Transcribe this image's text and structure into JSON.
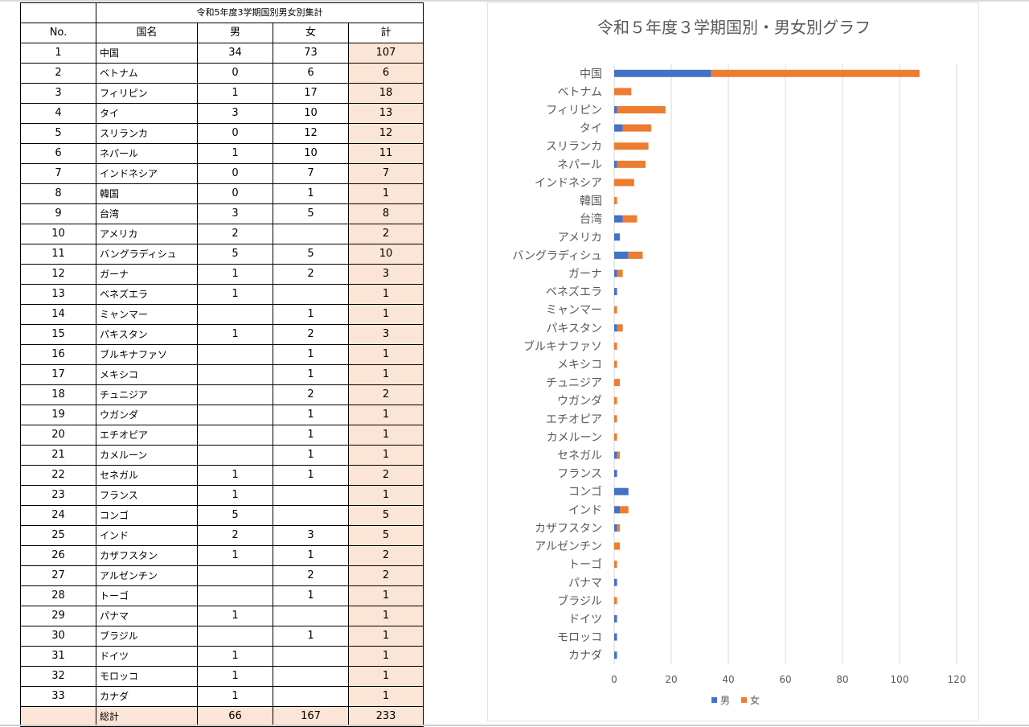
{
  "table": {
    "title": "令和5年度3学期国別男女別集計",
    "headers": [
      "No.",
      "国名",
      "男",
      "女",
      "計"
    ],
    "rows": [
      {
        "no": "1",
        "name": "中国",
        "male": "34",
        "female": "73",
        "total": "107"
      },
      {
        "no": "2",
        "name": "ベトナム",
        "male": "0",
        "female": "6",
        "total": "6"
      },
      {
        "no": "3",
        "name": "フィリピン",
        "male": "1",
        "female": "17",
        "total": "18"
      },
      {
        "no": "4",
        "name": "タイ",
        "male": "3",
        "female": "10",
        "total": "13"
      },
      {
        "no": "5",
        "name": "スリランカ",
        "male": "0",
        "female": "12",
        "total": "12"
      },
      {
        "no": "6",
        "name": "ネパール",
        "male": "1",
        "female": "10",
        "total": "11"
      },
      {
        "no": "7",
        "name": "インドネシア",
        "male": "0",
        "female": "7",
        "total": "7"
      },
      {
        "no": "8",
        "name": "韓国",
        "male": "0",
        "female": "1",
        "total": "1"
      },
      {
        "no": "9",
        "name": "台湾",
        "male": "3",
        "female": "5",
        "total": "8"
      },
      {
        "no": "10",
        "name": "アメリカ",
        "male": "2",
        "female": "",
        "total": "2"
      },
      {
        "no": "11",
        "name": "バングラディシュ",
        "male": "5",
        "female": "5",
        "total": "10"
      },
      {
        "no": "12",
        "name": "ガーナ",
        "male": "1",
        "female": "2",
        "total": "3"
      },
      {
        "no": "13",
        "name": "ベネズエラ",
        "male": "1",
        "female": "",
        "total": "1"
      },
      {
        "no": "14",
        "name": "ミャンマー",
        "male": "",
        "female": "1",
        "total": "1"
      },
      {
        "no": "15",
        "name": "パキスタン",
        "male": "1",
        "female": "2",
        "total": "3"
      },
      {
        "no": "16",
        "name": "ブルキナファソ",
        "male": "",
        "female": "1",
        "total": "1"
      },
      {
        "no": "17",
        "name": "メキシコ",
        "male": "",
        "female": "1",
        "total": "1"
      },
      {
        "no": "18",
        "name": "チュニジア",
        "male": "",
        "female": "2",
        "total": "2"
      },
      {
        "no": "19",
        "name": "ウガンダ",
        "male": "",
        "female": "1",
        "total": "1"
      },
      {
        "no": "20",
        "name": "エチオピア",
        "male": "",
        "female": "1",
        "total": "1"
      },
      {
        "no": "21",
        "name": "カメルーン",
        "male": "",
        "female": "1",
        "total": "1"
      },
      {
        "no": "22",
        "name": "セネガル",
        "male": "1",
        "female": "1",
        "total": "2"
      },
      {
        "no": "23",
        "name": "フランス",
        "male": "1",
        "female": "",
        "total": "1"
      },
      {
        "no": "24",
        "name": "コンゴ",
        "male": "5",
        "female": "",
        "total": "5"
      },
      {
        "no": "25",
        "name": "インド",
        "male": "2",
        "female": "3",
        "total": "5"
      },
      {
        "no": "26",
        "name": "カザフスタン",
        "male": "1",
        "female": "1",
        "total": "2"
      },
      {
        "no": "27",
        "name": "アルゼンチン",
        "male": "",
        "female": "2",
        "total": "2"
      },
      {
        "no": "28",
        "name": "トーゴ",
        "male": "",
        "female": "1",
        "total": "1"
      },
      {
        "no": "29",
        "name": "パナマ",
        "male": "1",
        "female": "",
        "total": "1"
      },
      {
        "no": "30",
        "name": "ブラジル",
        "male": "",
        "female": "1",
        "total": "1"
      },
      {
        "no": "31",
        "name": "ドイツ",
        "male": "1",
        "female": "",
        "total": "1"
      },
      {
        "no": "32",
        "name": "モロッコ",
        "male": "1",
        "female": "",
        "total": "1"
      },
      {
        "no": "33",
        "name": "カナダ",
        "male": "1",
        "female": "",
        "total": "1"
      }
    ],
    "total": {
      "no": "",
      "name": "総計",
      "male": "66",
      "female": "167",
      "total": "233"
    }
  },
  "colors": {
    "male": "#4472c4",
    "female": "#ed7d31",
    "total_cell": "#fbe5d6",
    "grid": "#d9d9d9",
    "text": "#595959"
  },
  "chart_data": {
    "type": "bar",
    "orientation": "horizontal",
    "stacked": true,
    "title": "令和５年度３学期国別・男女別グラフ",
    "categories": [
      "中国",
      "ベトナム",
      "フィリピン",
      "タイ",
      "スリランカ",
      "ネパール",
      "インドネシア",
      "韓国",
      "台湾",
      "アメリカ",
      "バングラディシュ",
      "ガーナ",
      "ベネズエラ",
      "ミャンマー",
      "パキスタン",
      "ブルキナファソ",
      "メキシコ",
      "チュニジア",
      "ウガンダ",
      "エチオピア",
      "カメルーン",
      "セネガル",
      "フランス",
      "コンゴ",
      "インド",
      "カザフスタン",
      "アルゼンチン",
      "トーゴ",
      "パナマ",
      "ブラジル",
      "ドイツ",
      "モロッコ",
      "カナダ"
    ],
    "series": [
      {
        "name": "男",
        "values": [
          34,
          0,
          1,
          3,
          0,
          1,
          0,
          0,
          3,
          2,
          5,
          1,
          1,
          0,
          1,
          0,
          0,
          0,
          0,
          0,
          0,
          1,
          1,
          5,
          2,
          1,
          0,
          0,
          1,
          0,
          1,
          1,
          1
        ]
      },
      {
        "name": "女",
        "values": [
          73,
          6,
          17,
          10,
          12,
          10,
          7,
          1,
          5,
          0,
          5,
          2,
          0,
          1,
          2,
          1,
          1,
          2,
          1,
          1,
          1,
          1,
          0,
          0,
          3,
          1,
          2,
          1,
          0,
          1,
          0,
          0,
          0
        ]
      }
    ],
    "xlim": [
      0,
      120
    ],
    "xticks": [
      "0",
      "20",
      "40",
      "60",
      "80",
      "100",
      "120"
    ],
    "grid": true,
    "legend": "bottom"
  }
}
